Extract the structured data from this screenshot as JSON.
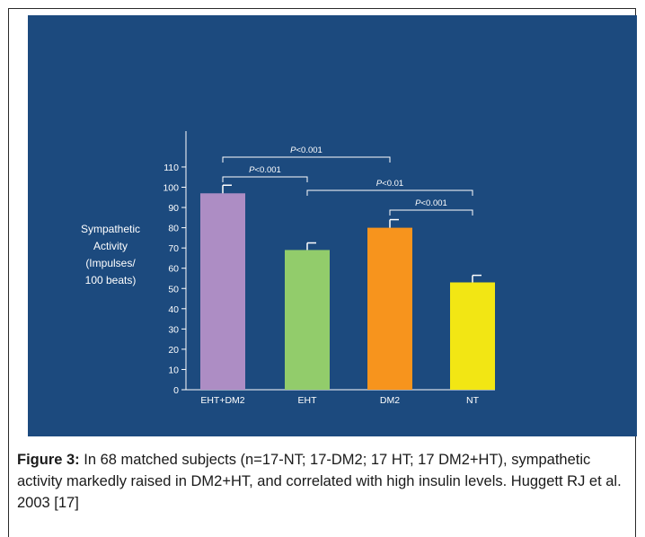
{
  "chart_data": {
    "type": "bar",
    "ylabel_lines": [
      "Sympathetic",
      "Activity",
      "(Impulses/",
      "100 beats)"
    ],
    "categories": [
      "EHT+DM2",
      "EHT",
      "DM2",
      "NT"
    ],
    "values": [
      97,
      69,
      80,
      53
    ],
    "errors": [
      4,
      3.5,
      4,
      3.5
    ],
    "colors": [
      "#ad8dc4",
      "#92cc6b",
      "#f7941d",
      "#f2e614"
    ],
    "ylim": [
      0,
      110
    ],
    "yticks": [
      0,
      10,
      20,
      30,
      40,
      50,
      60,
      70,
      80,
      90,
      100,
      110
    ],
    "significance": [
      {
        "from": 0,
        "to": 2,
        "label_p": "P",
        "label_rest": "<0.001",
        "level": 0
      },
      {
        "from": 0,
        "to": 1,
        "label_p": "P",
        "label_rest": "<0.001",
        "level": 1
      },
      {
        "from": 1,
        "to": 3,
        "label_p": "P",
        "label_rest": "<0.01",
        "level": 2
      },
      {
        "from": 2,
        "to": 3,
        "label_p": "P",
        "label_rest": "<0.001",
        "level": 3
      }
    ],
    "panel_color": "#1c4a7e"
  },
  "caption": {
    "label": "Figure 3:",
    "text": " In 68 matched subjects (n=17-NT; 17-DM2; 17 HT; 17 DM2+HT), sympathetic activity markedly raised in DM2+HT, and correlated with high insulin levels. Huggett RJ et al. 2003 [17]"
  }
}
